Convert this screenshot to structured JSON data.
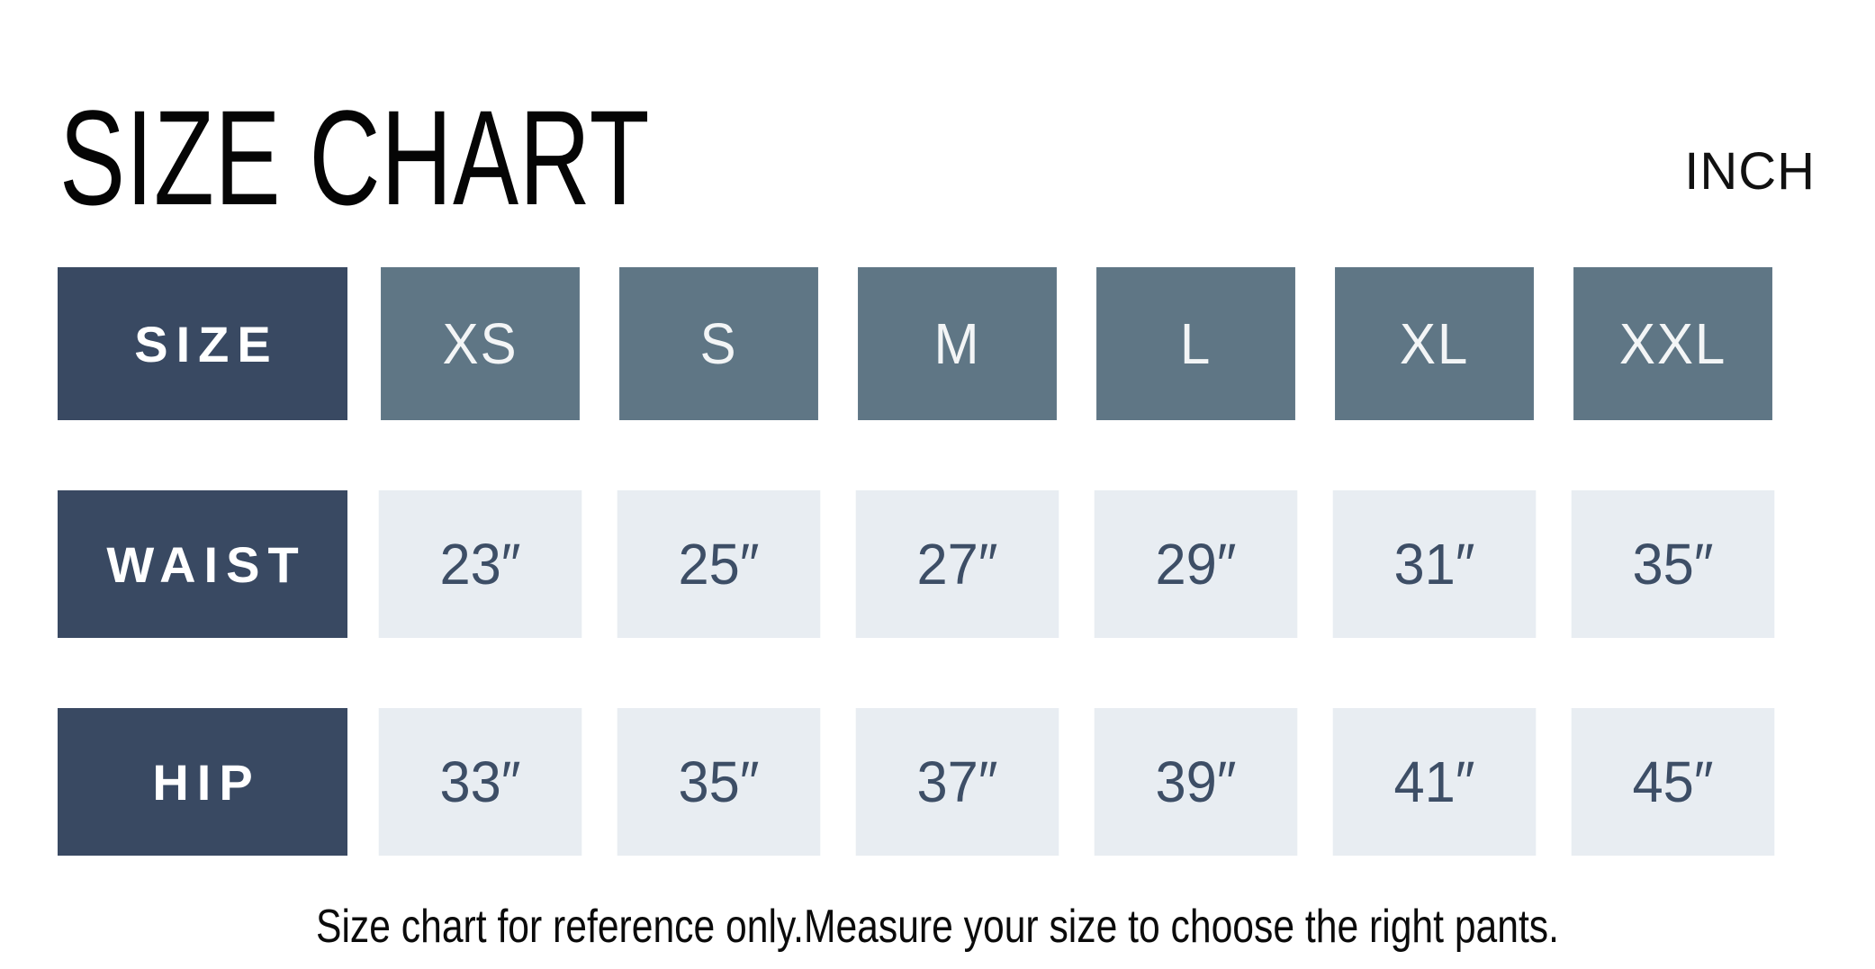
{
  "colors": {
    "header_dark": "#394962",
    "header_slate": "#5f7685",
    "cell_bg": "#e8edf2",
    "cell_text": "#3d4e66"
  },
  "chart_data": {
    "type": "table",
    "title": "SIZE CHART",
    "unit": "INCH",
    "columns": [
      "SIZE",
      "XS",
      "S",
      "M",
      "L",
      "XL",
      "XXL"
    ],
    "rows": [
      {
        "label": "WAIST",
        "values": [
          "23″",
          "25″",
          "27″",
          "29″",
          "31″",
          "35″"
        ]
      },
      {
        "label": "HIP",
        "values": [
          "33″",
          "35″",
          "37″",
          "39″",
          "41″",
          "45″"
        ]
      }
    ],
    "footnote": "Size chart for reference only.Measure your size to choose the right pants."
  }
}
